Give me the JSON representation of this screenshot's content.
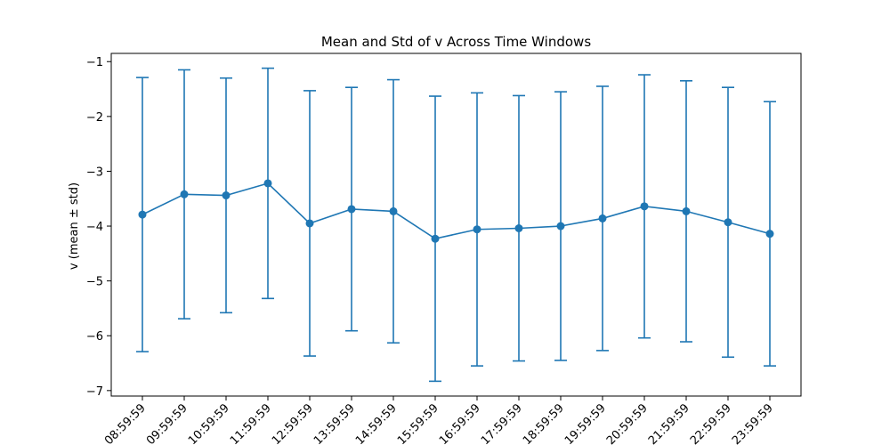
{
  "chart_data": {
    "type": "line",
    "title": "Mean and Std of v Across Time Windows",
    "xlabel": "",
    "ylabel": "v (mean ± std)",
    "ylim": [
      -7.1,
      -0.85
    ],
    "yticks": [
      -1,
      -2,
      -3,
      -4,
      -5,
      -6,
      -7
    ],
    "ytick_labels": [
      "−1",
      "−2",
      "−3",
      "−4",
      "−5",
      "−6",
      "−7"
    ],
    "categories": [
      "08:59:59",
      "09:59:59",
      "10:59:59",
      "11:59:59",
      "12:59:59",
      "13:59:59",
      "14:59:59",
      "15:59:59",
      "16:59:59",
      "17:59:59",
      "18:59:59",
      "19:59:59",
      "20:59:59",
      "21:59:59",
      "22:59:59",
      "23:59:59"
    ],
    "series": [
      {
        "values": [
          -3.79,
          -3.42,
          -3.44,
          -3.22,
          -3.95,
          -3.69,
          -3.73,
          -4.23,
          -4.06,
          -4.04,
          -4.0,
          -3.86,
          -3.64,
          -3.73,
          -3.93,
          -4.14
        ],
        "std": [
          2.5,
          2.27,
          2.14,
          2.1,
          2.42,
          2.22,
          2.4,
          2.6,
          2.49,
          2.42,
          2.45,
          2.41,
          2.4,
          2.38,
          2.46,
          2.41
        ],
        "color": "#1f77b4",
        "marker": "circle",
        "error_bars": true
      }
    ],
    "grid": false,
    "legend": "none"
  }
}
